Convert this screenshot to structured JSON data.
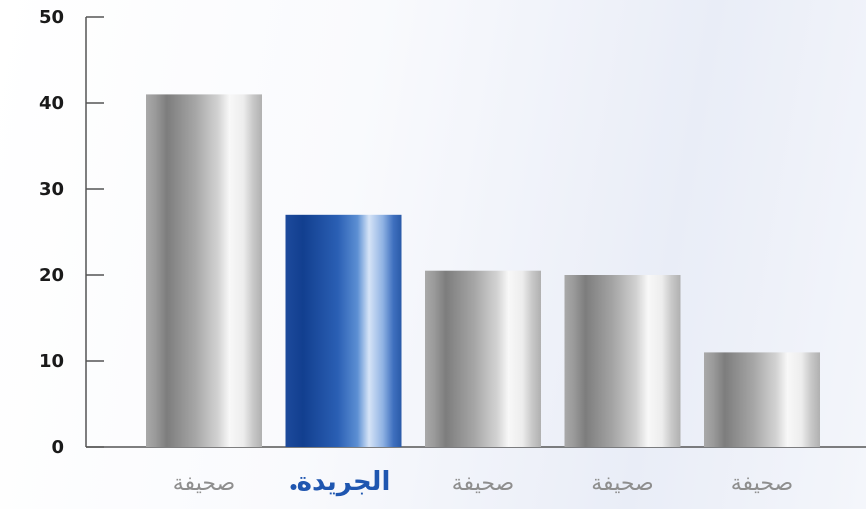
{
  "chart_data": {
    "type": "bar",
    "categories": [
      "صحيفة",
      "الجريدة",
      "صحيفة",
      "صحيفة",
      "صحيفة"
    ],
    "values": [
      41,
      27,
      20.5,
      20,
      11
    ],
    "highlight_index": 1,
    "ylim": [
      0,
      50
    ],
    "yticks": [
      0,
      10,
      20,
      30,
      40,
      50
    ],
    "grid": false,
    "colors": {
      "bar_gray_dark": "#7a7a7a",
      "bar_gray_light": "#f7f7f7",
      "bar_blue_dark": "#123f8f",
      "bar_blue_light": "#d6e4f7",
      "axis": "#555555",
      "highlight_label": "#1f56b0"
    }
  }
}
